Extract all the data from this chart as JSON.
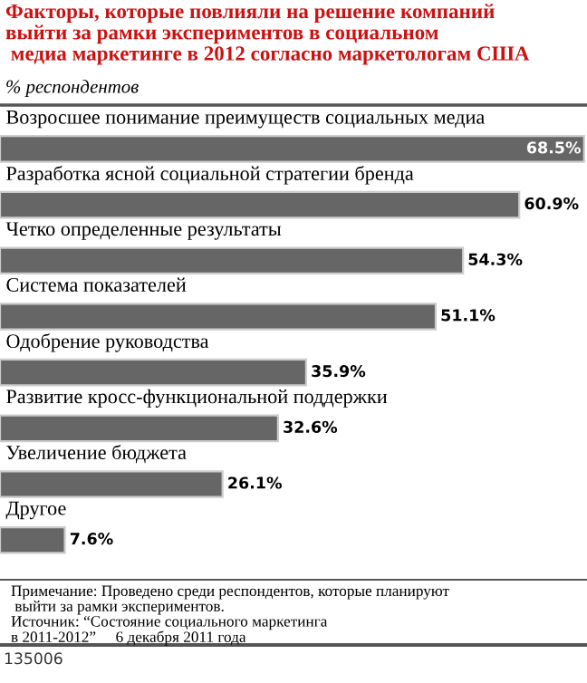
{
  "chart_data": {
    "type": "bar",
    "orientation": "horizontal",
    "title": "Факторы, которые повлияли на решение компаний\nвыйти за рамки экспериментов в социальном\n медиа маркетинге в 2012 согласно маркетологам США",
    "subtitle": "% респондентов",
    "categories": [
      "Возросшее понимание преимуществ социальных медиа",
      "Разработка ясной социальной стратегии бренда",
      "Четко определенные результаты",
      "Система показателей",
      "Одобрение руководства",
      "Развитие кросс-функциональной поддержки",
      "Увеличение бюджета",
      "Другое"
    ],
    "values": [
      68.5,
      60.9,
      54.3,
      51.1,
      35.9,
      32.6,
      26.1,
      7.6
    ],
    "color": "#666666",
    "value_labels": [
      "68.5%",
      "60.9%",
      "54.3%",
      "51.1%",
      "35.9%",
      "32.6%",
      "26.1%",
      "7.6%"
    ],
    "annotations": [
      "Примечание: Проведено среди респондентов, которые планируют\n выйти за рамки экспериментов.\nИсточник: “Состояние социального маркетинга\nв 2011-2012”     6 декабря 2011 года",
      "135006"
    ]
  }
}
